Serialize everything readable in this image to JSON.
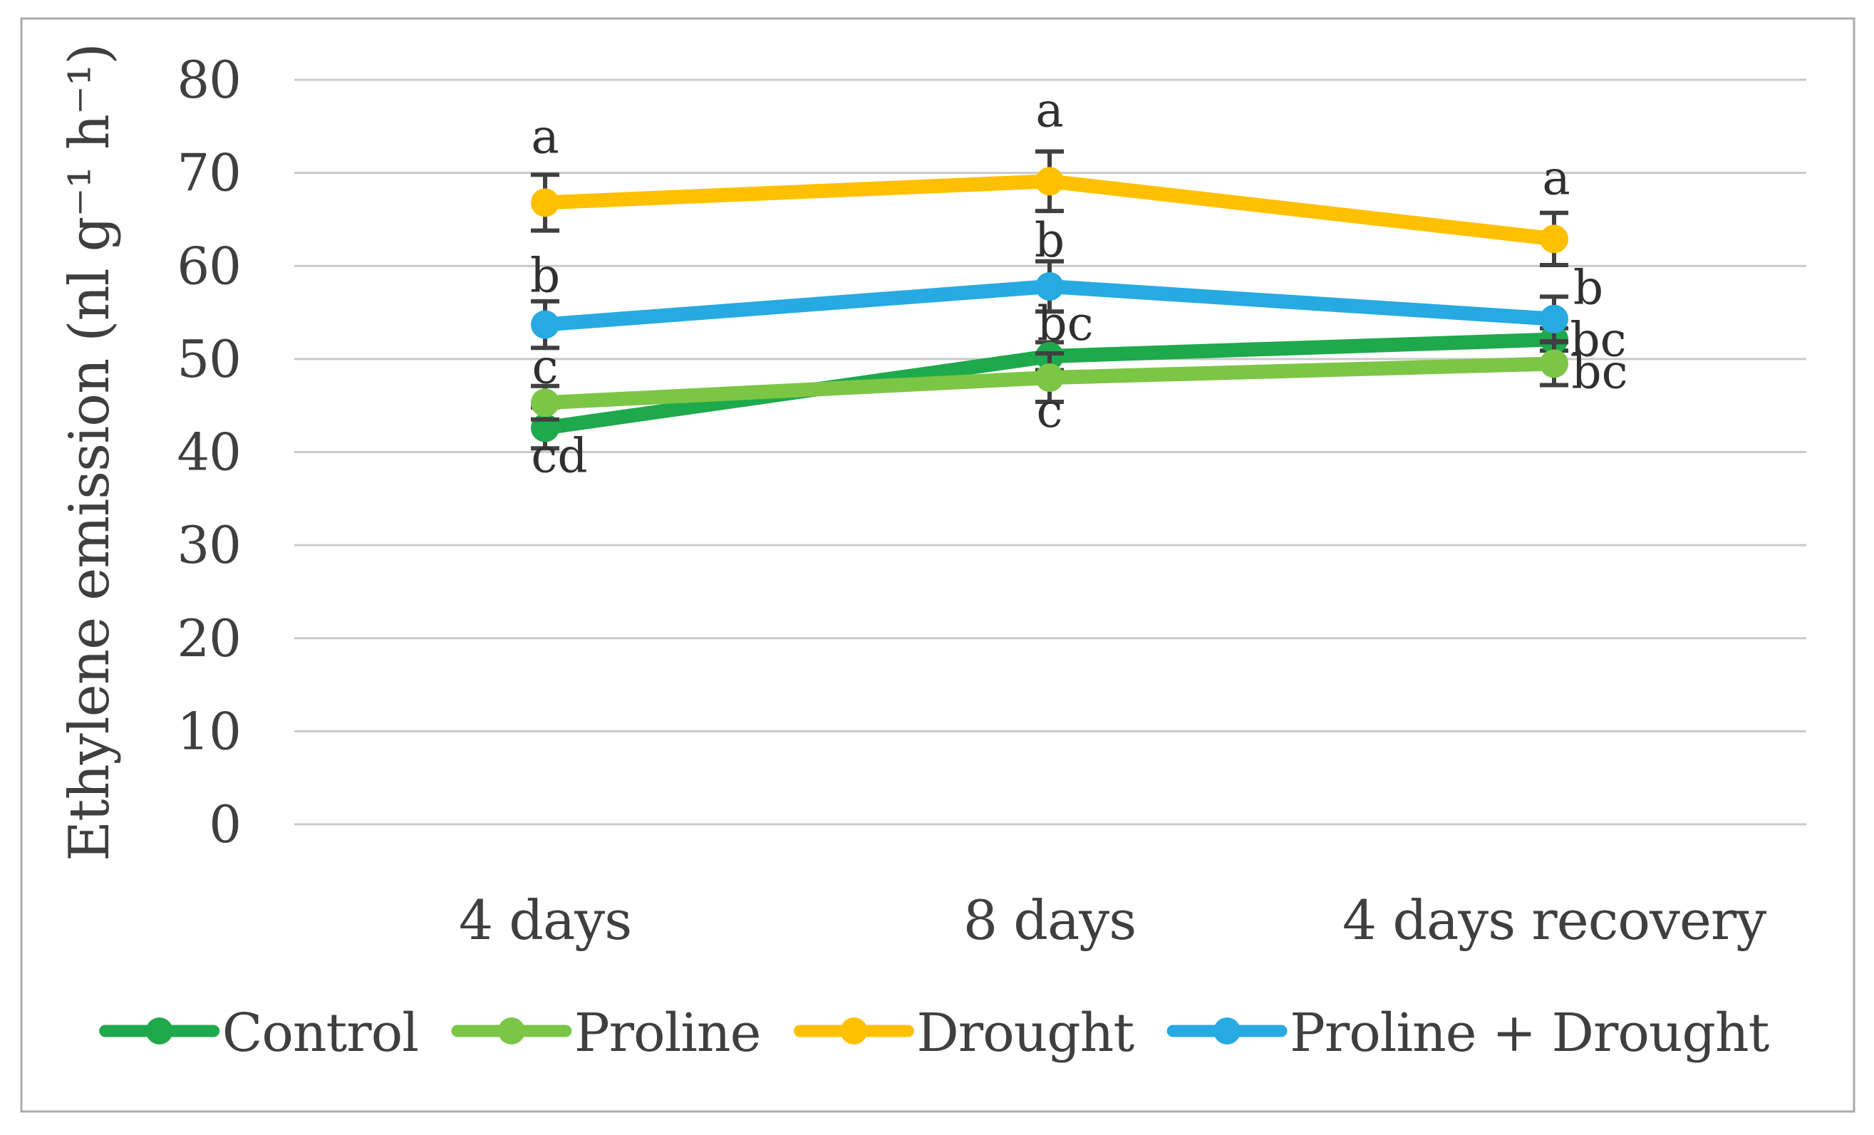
{
  "figure": {
    "background_color": "#FFFFFF",
    "border_color": "#ABABAB",
    "gridline_color": "#C9C9C9",
    "text_color": "#3F3F3F",
    "error_bar_color": "#404040"
  },
  "chart_data": {
    "type": "line",
    "title": "",
    "xlabel": "",
    "ylabel": "Ethylene emission (nl g⁻¹ h⁻¹)",
    "categories": [
      "4 days",
      "8 days",
      "4 days recovery"
    ],
    "ylim": [
      0,
      80
    ],
    "yticks": [
      80,
      70,
      60,
      50,
      40,
      30,
      20,
      10,
      0
    ],
    "grid": true,
    "legend_position": "bottom",
    "series": [
      {
        "name": "Control",
        "color": "#1EA94C",
        "values": [
          42.6,
          50.3,
          52.1
        ],
        "errors": [
          2.2,
          1.5,
          1.2
        ],
        "letters": [
          {
            "text": "cd",
            "dx": 20,
            "dy": 62
          },
          {
            "text": "bc",
            "dx": 22,
            "dy": -23
          },
          {
            "text": "bc",
            "dx": 62,
            "dy": 23
          }
        ]
      },
      {
        "name": "Proline",
        "color": "#7CC646",
        "values": [
          45.3,
          48.0,
          49.5
        ],
        "errors": [
          1.8,
          2.6,
          2.3
        ],
        "letters": [
          {
            "text": "c",
            "dx": 0,
            "dy": -28
          },
          {
            "text": "c",
            "dx": 0,
            "dy": 69
          },
          {
            "text": "bc",
            "dx": 64,
            "dy": 34
          }
        ]
      },
      {
        "name": "Drought",
        "color": "#FFC000",
        "values": [
          66.8,
          69.1,
          62.9
        ],
        "errors": [
          3.0,
          3.2,
          2.8
        ],
        "letters": [
          {
            "text": "a",
            "dx": 0,
            "dy": -70
          },
          {
            "text": "a",
            "dx": 0,
            "dy": -77
          },
          {
            "text": "a",
            "dx": 3,
            "dy": -63
          }
        ]
      },
      {
        "name": "Proline + Drought",
        "color": "#27AAE1",
        "values": [
          53.7,
          57.8,
          54.3
        ],
        "errors": [
          2.5,
          2.7,
          2.4
        ],
        "letters": [
          {
            "text": "b",
            "dx": 0,
            "dy": -46
          },
          {
            "text": "b",
            "dx": 0,
            "dy": -42
          },
          {
            "text": "b",
            "dx": 48,
            "dy": -21
          }
        ]
      }
    ]
  }
}
